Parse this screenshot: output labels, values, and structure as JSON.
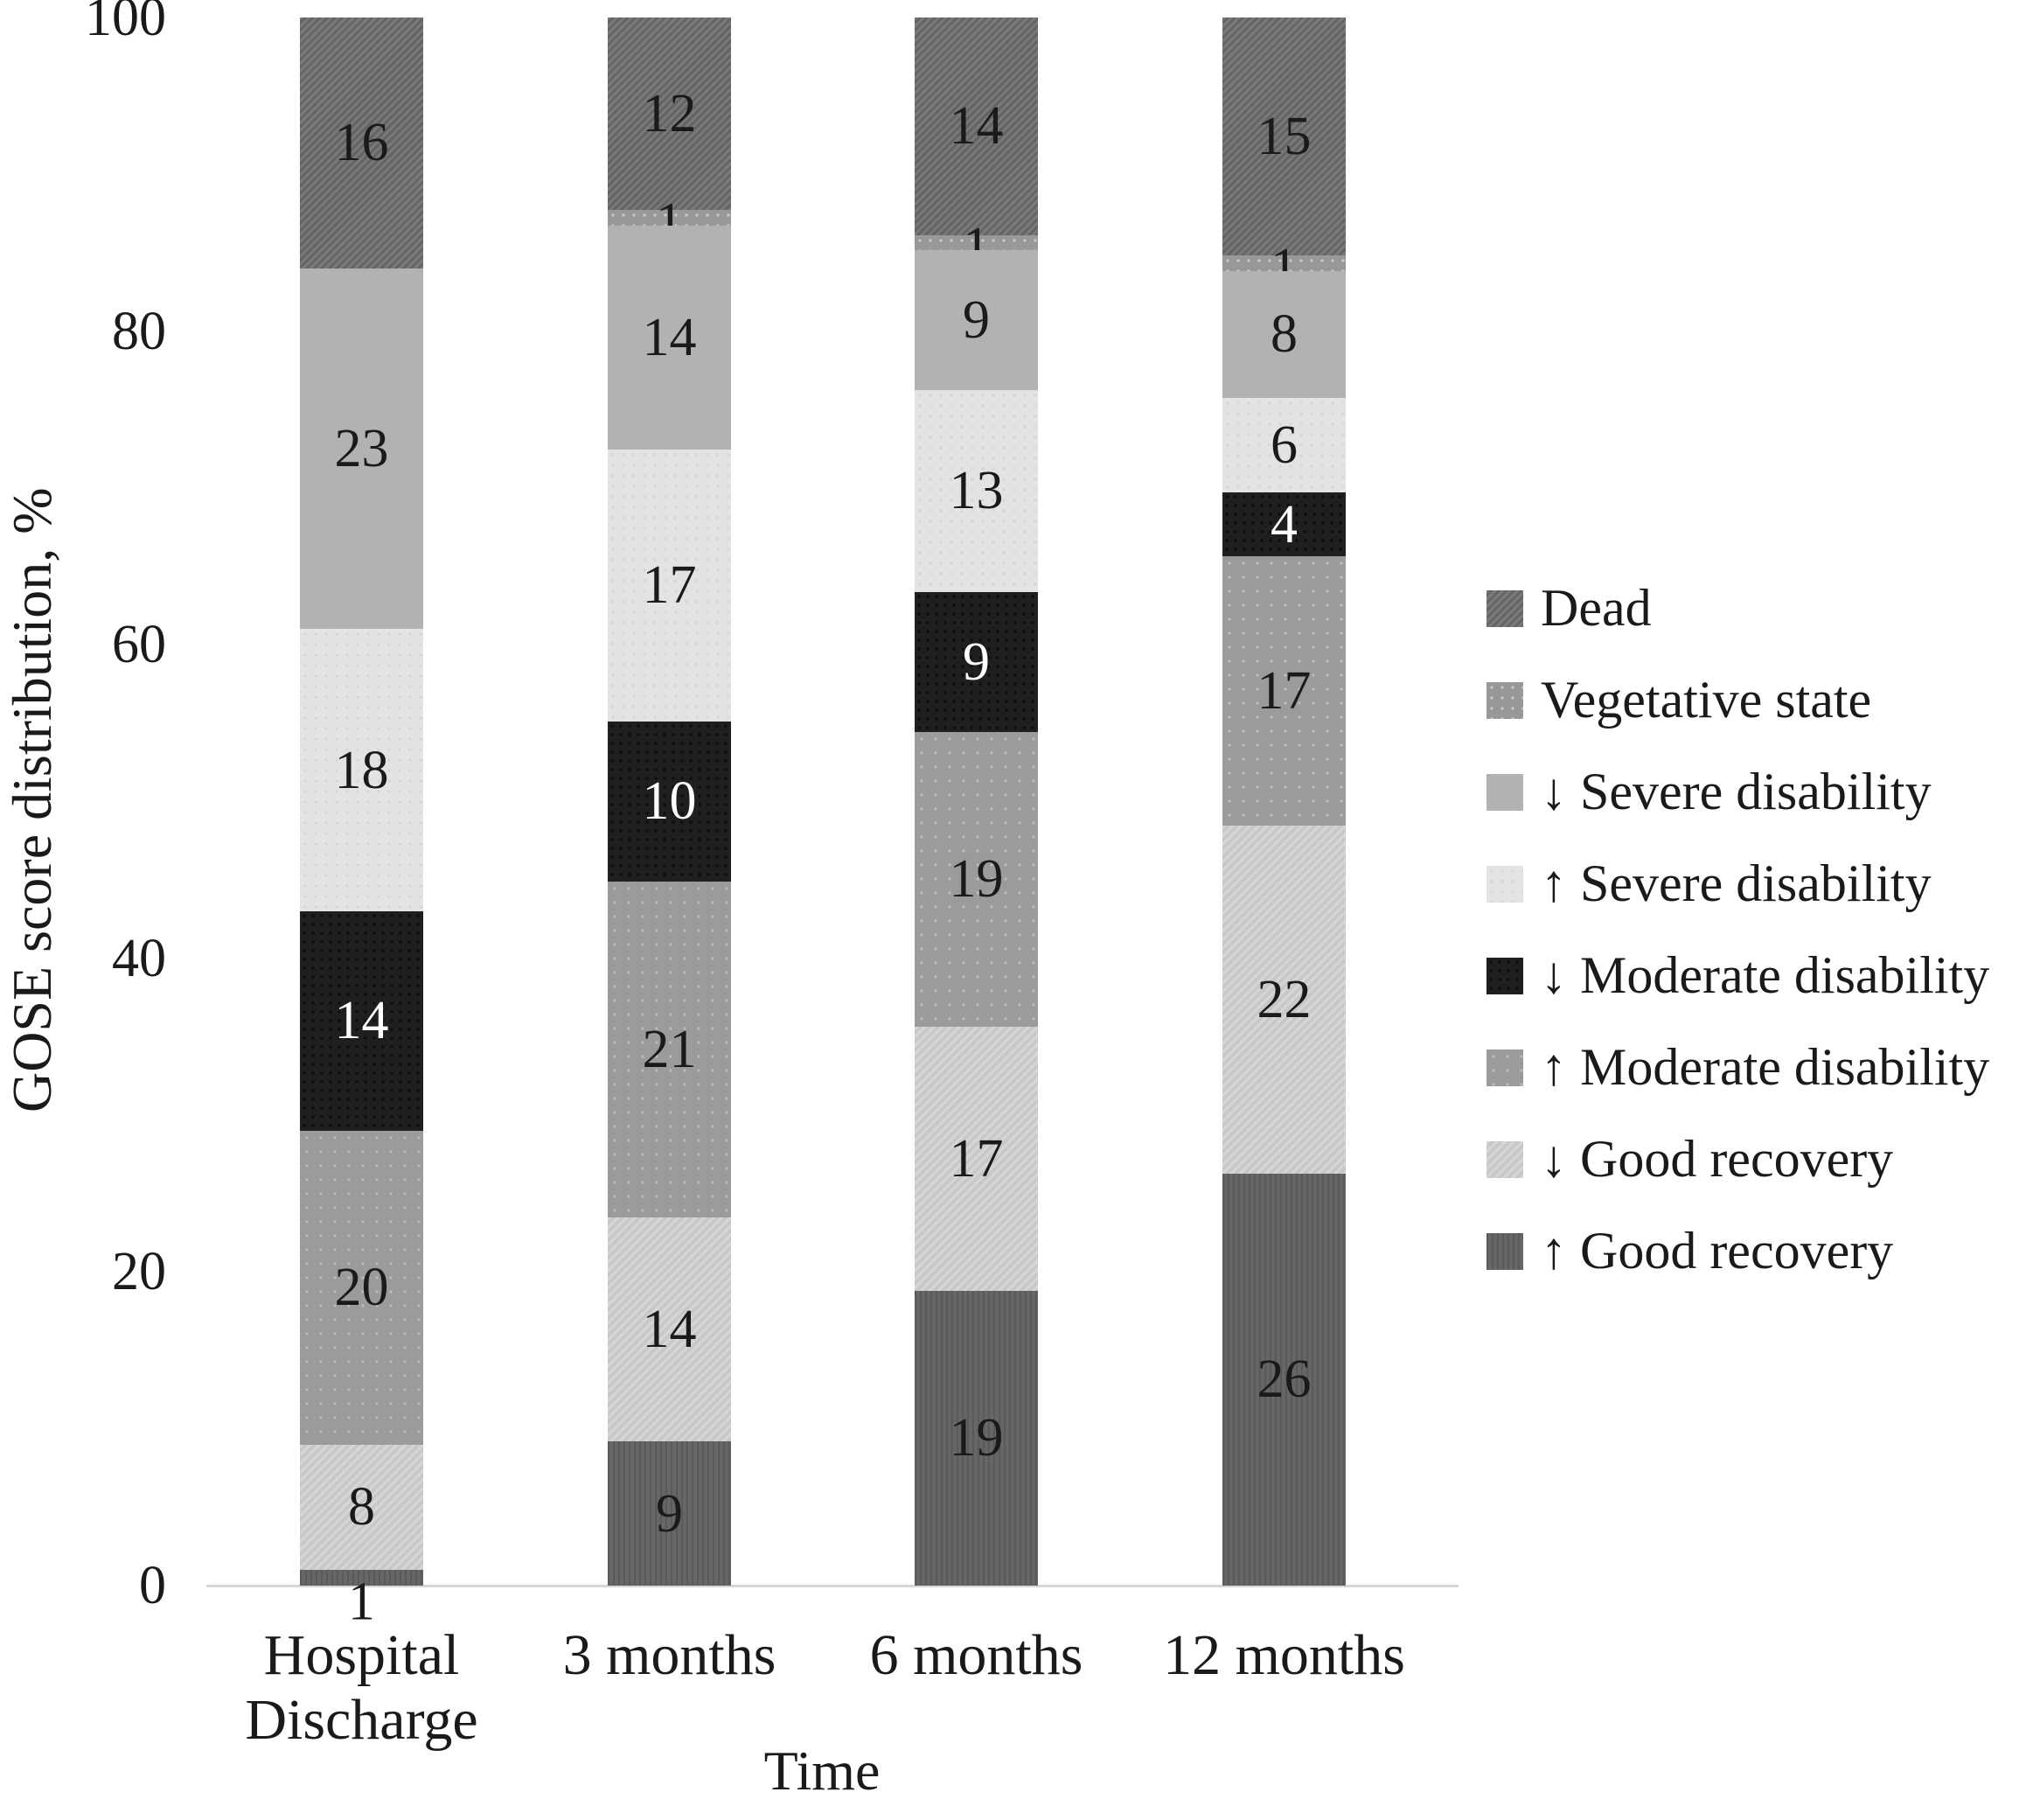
{
  "chart_data": {
    "type": "bar",
    "stacked": true,
    "orientation": "vertical",
    "title": "",
    "xlabel": "Time",
    "ylabel": "GOSE score distribution, %",
    "ylim": [
      0,
      100
    ],
    "yticks": [
      0,
      20,
      40,
      60,
      80,
      100
    ],
    "grid": false,
    "legend_position": "right",
    "categories": [
      "Hospital Discharge",
      "3 months",
      "6 months",
      "12 months"
    ],
    "series": [
      {
        "key": "dead",
        "name": "Dead",
        "color": "#6f6f6f",
        "pattern": "pat-dead",
        "label_color": "#1a1a1a",
        "values": [
          16,
          12,
          14,
          15
        ]
      },
      {
        "key": "veg",
        "name": "Vegetative state",
        "color": "#989898",
        "pattern": "pat-veg",
        "label_color": "#1a1a1a",
        "values": [
          0,
          1,
          1,
          1
        ]
      },
      {
        "key": "sevdown",
        "name": "↓ Severe disability",
        "color": "#b2b2b2",
        "pattern": "",
        "label_color": "#1a1a1a",
        "values": [
          23,
          14,
          9,
          8
        ]
      },
      {
        "key": "sevup",
        "name": "↑ Severe disability",
        "color": "#e3e3e3",
        "pattern": "pat-sevup",
        "label_color": "#1a1a1a",
        "values": [
          18,
          17,
          13,
          6
        ]
      },
      {
        "key": "moddown",
        "name": "↓ Moderate disability",
        "color": "#1f1f1f",
        "pattern": "pat-moddown",
        "label_color": "#ffffff",
        "values": [
          14,
          10,
          9,
          4
        ]
      },
      {
        "key": "modup",
        "name": "↑ Moderate disability",
        "color": "#9b9b9b",
        "pattern": "pat-modup",
        "label_color": "#1a1a1a",
        "values": [
          20,
          21,
          19,
          17
        ]
      },
      {
        "key": "gooddown",
        "name": "↓ Good recovery",
        "color": "#c8c8c8",
        "pattern": "pat-gooddown",
        "label_color": "#1a1a1a",
        "values": [
          8,
          14,
          17,
          22
        ]
      },
      {
        "key": "goodup",
        "name": "↑ Good recovery",
        "color": "#666666",
        "pattern": "pat-goodup",
        "label_color": "#1a1a1a",
        "values": [
          1,
          9,
          19,
          26
        ]
      }
    ]
  }
}
